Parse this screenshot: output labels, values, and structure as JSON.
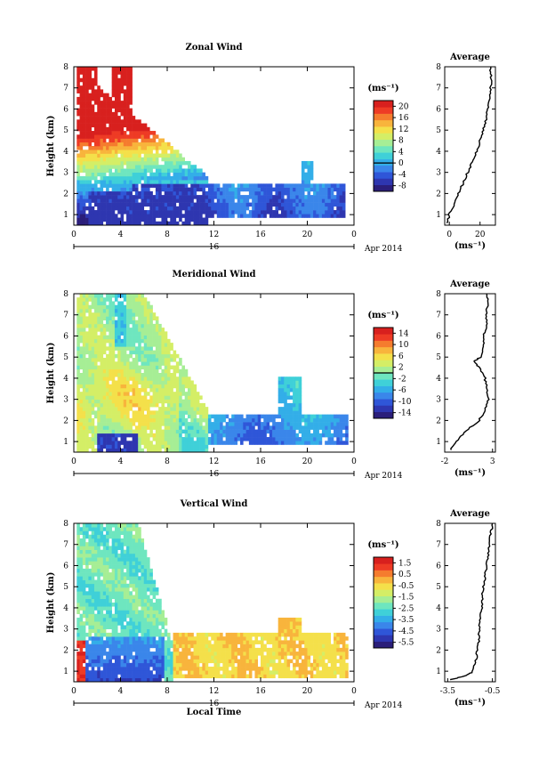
{
  "common": {
    "ylabel": "Height (km)",
    "day_label": "16",
    "month_label": "Apr 2014",
    "xlabel": "Local Time",
    "unit_label": "(ms⁻¹)",
    "average_title": "Average",
    "x_ticks": [
      "0",
      "4",
      "8",
      "12",
      "16",
      "20",
      "0"
    ],
    "y_ticks": [
      "1",
      "2",
      "3",
      "4",
      "5",
      "6",
      "7",
      "8"
    ]
  },
  "colormap": [
    "#2b1e7a",
    "#2e36b0",
    "#2f56d8",
    "#3a86ea",
    "#33aee8",
    "#3fd0d8",
    "#6ee6bf",
    "#a6ee95",
    "#d4ee66",
    "#f4e04a",
    "#f8b43c",
    "#f57c2e",
    "#ee3b25",
    "#d8201e"
  ],
  "chart_data": [
    {
      "type": "heatmap",
      "title": "Zonal Wind",
      "xlabel": "Local Time",
      "ylabel": "Height (km)",
      "xlim": [
        0,
        24
      ],
      "ylim": [
        0.5,
        8
      ],
      "colorbar": {
        "ticks": [
          "20",
          "16",
          "12",
          "8",
          "4",
          "0",
          "-4",
          "-8"
        ],
        "vmin": -10,
        "vmax": 22,
        "zero_line": 0
      },
      "average": {
        "title": "Average",
        "xlabel": "(ms⁻¹)",
        "xticks": [
          "0",
          "20"
        ],
        "xlim": [
          -3,
          30
        ],
        "profile": [
          [
            0.6,
            -1
          ],
          [
            1.0,
            0
          ],
          [
            1.5,
            3
          ],
          [
            2.0,
            6
          ],
          [
            2.5,
            9
          ],
          [
            3.0,
            12
          ],
          [
            3.5,
            15
          ],
          [
            4.0,
            18
          ],
          [
            4.5,
            20
          ],
          [
            5.0,
            22
          ],
          [
            5.5,
            24
          ],
          [
            6.0,
            25
          ],
          [
            6.5,
            26
          ],
          [
            7.0,
            27
          ],
          [
            7.5,
            27
          ],
          [
            8.0,
            27
          ]
        ]
      }
    },
    {
      "type": "heatmap",
      "title": "Meridional Wind",
      "xlabel": "Local Time",
      "ylabel": "Height (km)",
      "xlim": [
        0,
        24
      ],
      "ylim": [
        0.5,
        8
      ],
      "colorbar": {
        "ticks": [
          "14",
          "10",
          "6",
          "2",
          "-2",
          "-6",
          "-10",
          "-14"
        ],
        "vmin": -16,
        "vmax": 16,
        "zero_line": 0
      },
      "average": {
        "title": "Average",
        "xlabel": "(ms⁻¹)",
        "xticks": [
          "-2",
          "3"
        ],
        "xlim": [
          -2,
          3.3
        ],
        "profile": [
          [
            0.6,
            -1.4
          ],
          [
            1.0,
            -0.8
          ],
          [
            1.5,
            0.2
          ],
          [
            2.0,
            1.6
          ],
          [
            2.5,
            2.2
          ],
          [
            3.0,
            2.6
          ],
          [
            3.5,
            2.4
          ],
          [
            4.0,
            2.2
          ],
          [
            4.5,
            1.6
          ],
          [
            4.8,
            1.0
          ],
          [
            5.0,
            1.8
          ],
          [
            5.5,
            2.1
          ],
          [
            6.0,
            2.0
          ],
          [
            6.5,
            2.4
          ],
          [
            7.0,
            2.3
          ],
          [
            7.5,
            2.5
          ],
          [
            8.0,
            2.4
          ]
        ]
      }
    },
    {
      "type": "heatmap",
      "title": "Vertical Wind",
      "xlabel": "Local Time",
      "ylabel": "Height (km)",
      "xlim": [
        0,
        24
      ],
      "ylim": [
        0.5,
        8
      ],
      "colorbar": {
        "ticks": [
          "1.5",
          "0.5",
          "-0.5",
          "-1.5",
          "-2.5",
          "-3.5",
          "-4.5",
          "-5.5"
        ],
        "vmin": -6,
        "vmax": 2,
        "zero_line": null
      },
      "average": {
        "title": "Average",
        "xlabel": "(ms⁻¹)",
        "xticks": [
          "-3.5",
          "-0.5"
        ],
        "xlim": [
          -3.7,
          -0.3
        ],
        "profile": [
          [
            0.6,
            -3.3
          ],
          [
            0.8,
            -2.2
          ],
          [
            1.0,
            -1.8
          ],
          [
            1.5,
            -1.6
          ],
          [
            2.0,
            -1.5
          ],
          [
            2.5,
            -1.4
          ],
          [
            3.0,
            -1.4
          ],
          [
            3.5,
            -1.3
          ],
          [
            4.0,
            -1.2
          ],
          [
            4.5,
            -1.2
          ],
          [
            5.0,
            -1.1
          ],
          [
            5.5,
            -1.0
          ],
          [
            6.0,
            -0.9
          ],
          [
            6.5,
            -0.8
          ],
          [
            7.0,
            -0.7
          ],
          [
            7.5,
            -0.6
          ],
          [
            8.0,
            -0.5
          ]
        ]
      }
    }
  ]
}
